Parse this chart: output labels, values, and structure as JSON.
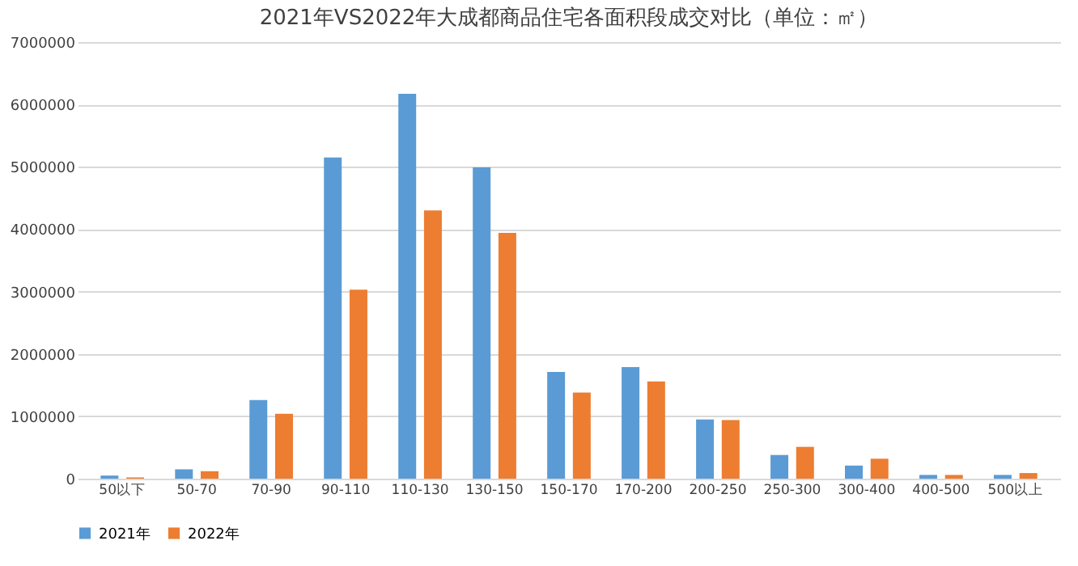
{
  "chart_data": {
    "type": "bar",
    "title": "2021年VS2022年大成都商品住宅各面积段成交对比（单位：㎡）",
    "categories": [
      "50以下",
      "50-70",
      "70-90",
      "90-110",
      "110-130",
      "130-150",
      "150-170",
      "170-200",
      "200-250",
      "250-300",
      "300-400",
      "400-500",
      "500以上"
    ],
    "series": [
      {
        "name": "2021年",
        "color": "#5b9bd5",
        "values": [
          50000,
          150000,
          1260000,
          5150000,
          6170000,
          4990000,
          1710000,
          1790000,
          950000,
          380000,
          210000,
          60000,
          60000
        ]
      },
      {
        "name": "2022年",
        "color": "#ed7d31",
        "values": [
          20000,
          120000,
          1040000,
          3030000,
          4300000,
          3940000,
          1380000,
          1560000,
          940000,
          510000,
          320000,
          60000,
          90000
        ]
      }
    ],
    "ylim": [
      0,
      7000000
    ],
    "yticks": [
      0,
      1000000,
      2000000,
      3000000,
      4000000,
      5000000,
      6000000,
      7000000
    ],
    "grid": "y",
    "legend": "bottom"
  }
}
